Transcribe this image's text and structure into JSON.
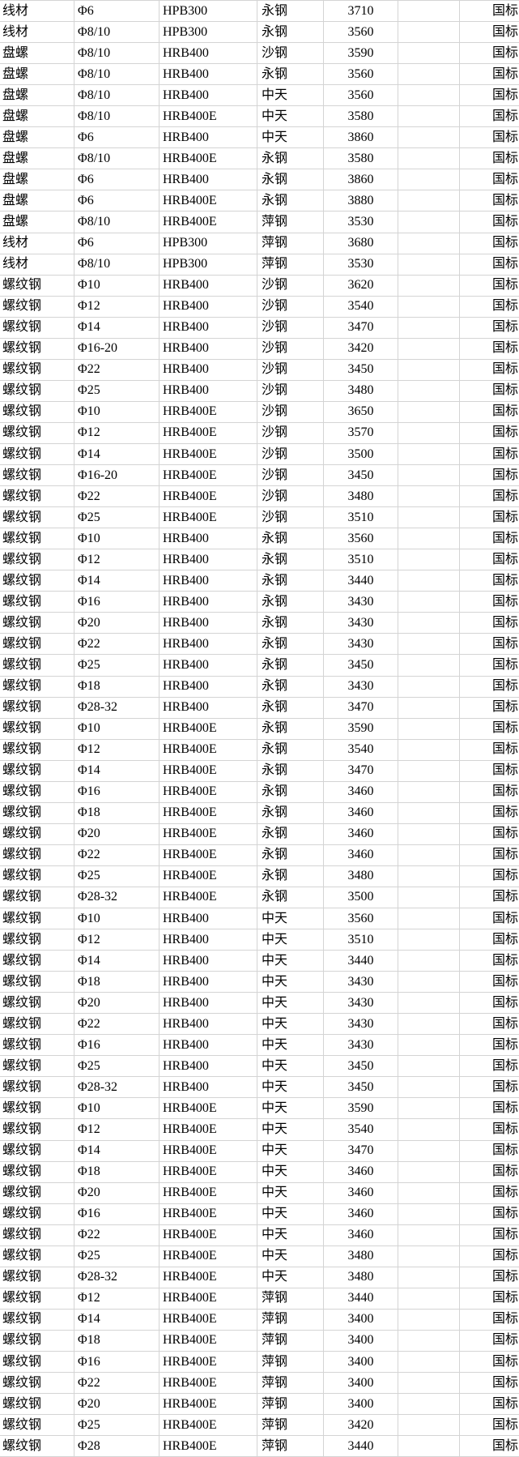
{
  "colors": {
    "background": "#ffffff",
    "gridline": "#d4d4d4",
    "text": "#000000"
  },
  "column_keys": [
    "product",
    "spec",
    "grade",
    "mill",
    "price",
    "empty",
    "standard"
  ],
  "rows": [
    [
      "线材",
      "Φ6",
      "HPB300",
      "永钢",
      "3710",
      "",
      "国标"
    ],
    [
      "线材",
      "Φ8/10",
      "HPB300",
      "永钢",
      "3560",
      "",
      "国标"
    ],
    [
      "盘螺",
      "Φ8/10",
      "HRB400",
      "沙钢",
      "3590",
      "",
      "国标"
    ],
    [
      "盘螺",
      "Φ8/10",
      "HRB400",
      "永钢",
      "3560",
      "",
      "国标"
    ],
    [
      "盘螺",
      "Φ8/10",
      "HRB400",
      "中天",
      "3560",
      "",
      "国标"
    ],
    [
      "盘螺",
      "Φ8/10",
      "HRB400E",
      "中天",
      "3580",
      "",
      "国标"
    ],
    [
      "盘螺",
      "Φ6",
      "HRB400",
      "中天",
      "3860",
      "",
      "国标"
    ],
    [
      "盘螺",
      "Φ8/10",
      "HRB400E",
      "永钢",
      "3580",
      "",
      "国标"
    ],
    [
      "盘螺",
      "Φ6",
      "HRB400",
      "永钢",
      "3860",
      "",
      "国标"
    ],
    [
      "盘螺",
      "Φ6",
      "HRB400E",
      "永钢",
      "3880",
      "",
      "国标"
    ],
    [
      "盘螺",
      "Φ8/10",
      "HRB400E",
      "萍钢",
      "3530",
      "",
      "国标"
    ],
    [
      "线材",
      "Φ6",
      "HPB300",
      "萍钢",
      "3680",
      "",
      "国标"
    ],
    [
      "线材",
      "Φ8/10",
      "HPB300",
      "萍钢",
      "3530",
      "",
      "国标"
    ],
    [
      "螺纹钢",
      "Φ10",
      "HRB400",
      "沙钢",
      "3620",
      "",
      "国标"
    ],
    [
      "螺纹钢",
      "Φ12",
      "HRB400",
      "沙钢",
      "3540",
      "",
      "国标"
    ],
    [
      "螺纹钢",
      "Φ14",
      "HRB400",
      "沙钢",
      "3470",
      "",
      "国标"
    ],
    [
      "螺纹钢",
      "Φ16-20",
      "HRB400",
      "沙钢",
      "3420",
      "",
      "国标"
    ],
    [
      "螺纹钢",
      "Φ22",
      "HRB400",
      "沙钢",
      "3450",
      "",
      "国标"
    ],
    [
      "螺纹钢",
      "Φ25",
      "HRB400",
      "沙钢",
      "3480",
      "",
      "国标"
    ],
    [
      "螺纹钢",
      "Φ10",
      "HRB400E",
      "沙钢",
      "3650",
      "",
      "国标"
    ],
    [
      "螺纹钢",
      "Φ12",
      "HRB400E",
      "沙钢",
      "3570",
      "",
      "国标"
    ],
    [
      "螺纹钢",
      "Φ14",
      "HRB400E",
      "沙钢",
      "3500",
      "",
      "国标"
    ],
    [
      "螺纹钢",
      "Φ16-20",
      "HRB400E",
      "沙钢",
      "3450",
      "",
      "国标"
    ],
    [
      "螺纹钢",
      "Φ22",
      "HRB400E",
      "沙钢",
      "3480",
      "",
      "国标"
    ],
    [
      "螺纹钢",
      "Φ25",
      "HRB400E",
      "沙钢",
      "3510",
      "",
      "国标"
    ],
    [
      "螺纹钢",
      "Φ10",
      "HRB400",
      "永钢",
      "3560",
      "",
      "国标"
    ],
    [
      "螺纹钢",
      "Φ12",
      "HRB400",
      "永钢",
      "3510",
      "",
      "国标"
    ],
    [
      "螺纹钢",
      "Φ14",
      "HRB400",
      "永钢",
      "3440",
      "",
      "国标"
    ],
    [
      "螺纹钢",
      "Φ16",
      "HRB400",
      "永钢",
      "3430",
      "",
      "国标"
    ],
    [
      "螺纹钢",
      "Φ20",
      "HRB400",
      "永钢",
      "3430",
      "",
      "国标"
    ],
    [
      "螺纹钢",
      "Φ22",
      "HRB400",
      "永钢",
      "3430",
      "",
      "国标"
    ],
    [
      "螺纹钢",
      "Φ25",
      "HRB400",
      "永钢",
      "3450",
      "",
      "国标"
    ],
    [
      "螺纹钢",
      "Φ18",
      "HRB400",
      "永钢",
      "3430",
      "",
      "国标"
    ],
    [
      "螺纹钢",
      "Φ28-32",
      "HRB400",
      "永钢",
      "3470",
      "",
      "国标"
    ],
    [
      "螺纹钢",
      "Φ10",
      "HRB400E",
      "永钢",
      "3590",
      "",
      "国标"
    ],
    [
      "螺纹钢",
      "Φ12",
      "HRB400E",
      "永钢",
      "3540",
      "",
      "国标"
    ],
    [
      "螺纹钢",
      "Φ14",
      "HRB400E",
      "永钢",
      "3470",
      "",
      "国标"
    ],
    [
      "螺纹钢",
      "Φ16",
      "HRB400E",
      "永钢",
      "3460",
      "",
      "国标"
    ],
    [
      "螺纹钢",
      "Φ18",
      "HRB400E",
      "永钢",
      "3460",
      "",
      "国标"
    ],
    [
      "螺纹钢",
      "Φ20",
      "HRB400E",
      "永钢",
      "3460",
      "",
      "国标"
    ],
    [
      "螺纹钢",
      "Φ22",
      "HRB400E",
      "永钢",
      "3460",
      "",
      "国标"
    ],
    [
      "螺纹钢",
      "Φ25",
      "HRB400E",
      "永钢",
      "3480",
      "",
      "国标"
    ],
    [
      "螺纹钢",
      "Φ28-32",
      "HRB400E",
      "永钢",
      "3500",
      "",
      "国标"
    ],
    [
      "螺纹钢",
      "Φ10",
      "HRB400",
      "中天",
      "3560",
      "",
      "国标"
    ],
    [
      "螺纹钢",
      "Φ12",
      "HRB400",
      "中天",
      "3510",
      "",
      "国标"
    ],
    [
      "螺纹钢",
      "Φ14",
      "HRB400",
      "中天",
      "3440",
      "",
      "国标"
    ],
    [
      "螺纹钢",
      "Φ18",
      "HRB400",
      "中天",
      "3430",
      "",
      "国标"
    ],
    [
      "螺纹钢",
      "Φ20",
      "HRB400",
      "中天",
      "3430",
      "",
      "国标"
    ],
    [
      "螺纹钢",
      "Φ22",
      "HRB400",
      "中天",
      "3430",
      "",
      "国标"
    ],
    [
      "螺纹钢",
      "Φ16",
      "HRB400",
      "中天",
      "3430",
      "",
      "国标"
    ],
    [
      "螺纹钢",
      "Φ25",
      "HRB400",
      "中天",
      "3450",
      "",
      "国标"
    ],
    [
      "螺纹钢",
      "Φ28-32",
      "HRB400",
      "中天",
      "3450",
      "",
      "国标"
    ],
    [
      "螺纹钢",
      "Φ10",
      "HRB400E",
      "中天",
      "3590",
      "",
      "国标"
    ],
    [
      "螺纹钢",
      "Φ12",
      "HRB400E",
      "中天",
      "3540",
      "",
      "国标"
    ],
    [
      "螺纹钢",
      "Φ14",
      "HRB400E",
      "中天",
      "3470",
      "",
      "国标"
    ],
    [
      "螺纹钢",
      "Φ18",
      "HRB400E",
      "中天",
      "3460",
      "",
      "国标"
    ],
    [
      "螺纹钢",
      "Φ20",
      "HRB400E",
      "中天",
      "3460",
      "",
      "国标"
    ],
    [
      "螺纹钢",
      "Φ16",
      "HRB400E",
      "中天",
      "3460",
      "",
      "国标"
    ],
    [
      "螺纹钢",
      "Φ22",
      "HRB400E",
      "中天",
      "3460",
      "",
      "国标"
    ],
    [
      "螺纹钢",
      "Φ25",
      "HRB400E",
      "中天",
      "3480",
      "",
      "国标"
    ],
    [
      "螺纹钢",
      "Φ28-32",
      "HRB400E",
      "中天",
      "3480",
      "",
      "国标"
    ],
    [
      "螺纹钢",
      "Φ12",
      "HRB400E",
      "萍钢",
      "3440",
      "",
      "国标"
    ],
    [
      "螺纹钢",
      "Φ14",
      "HRB400E",
      "萍钢",
      "3400",
      "",
      "国标"
    ],
    [
      "螺纹钢",
      "Φ18",
      "HRB400E",
      "萍钢",
      "3400",
      "",
      "国标"
    ],
    [
      "螺纹钢",
      "Φ16",
      "HRB400E",
      "萍钢",
      "3400",
      "",
      "国标"
    ],
    [
      "螺纹钢",
      "Φ22",
      "HRB400E",
      "萍钢",
      "3400",
      "",
      "国标"
    ],
    [
      "螺纹钢",
      "Φ20",
      "HRB400E",
      "萍钢",
      "3400",
      "",
      "国标"
    ],
    [
      "螺纹钢",
      "Φ25",
      "HRB400E",
      "萍钢",
      "3420",
      "",
      "国标"
    ],
    [
      "螺纹钢",
      "Φ28",
      "HRB400E",
      "萍钢",
      "3440",
      "",
      "国标"
    ]
  ]
}
